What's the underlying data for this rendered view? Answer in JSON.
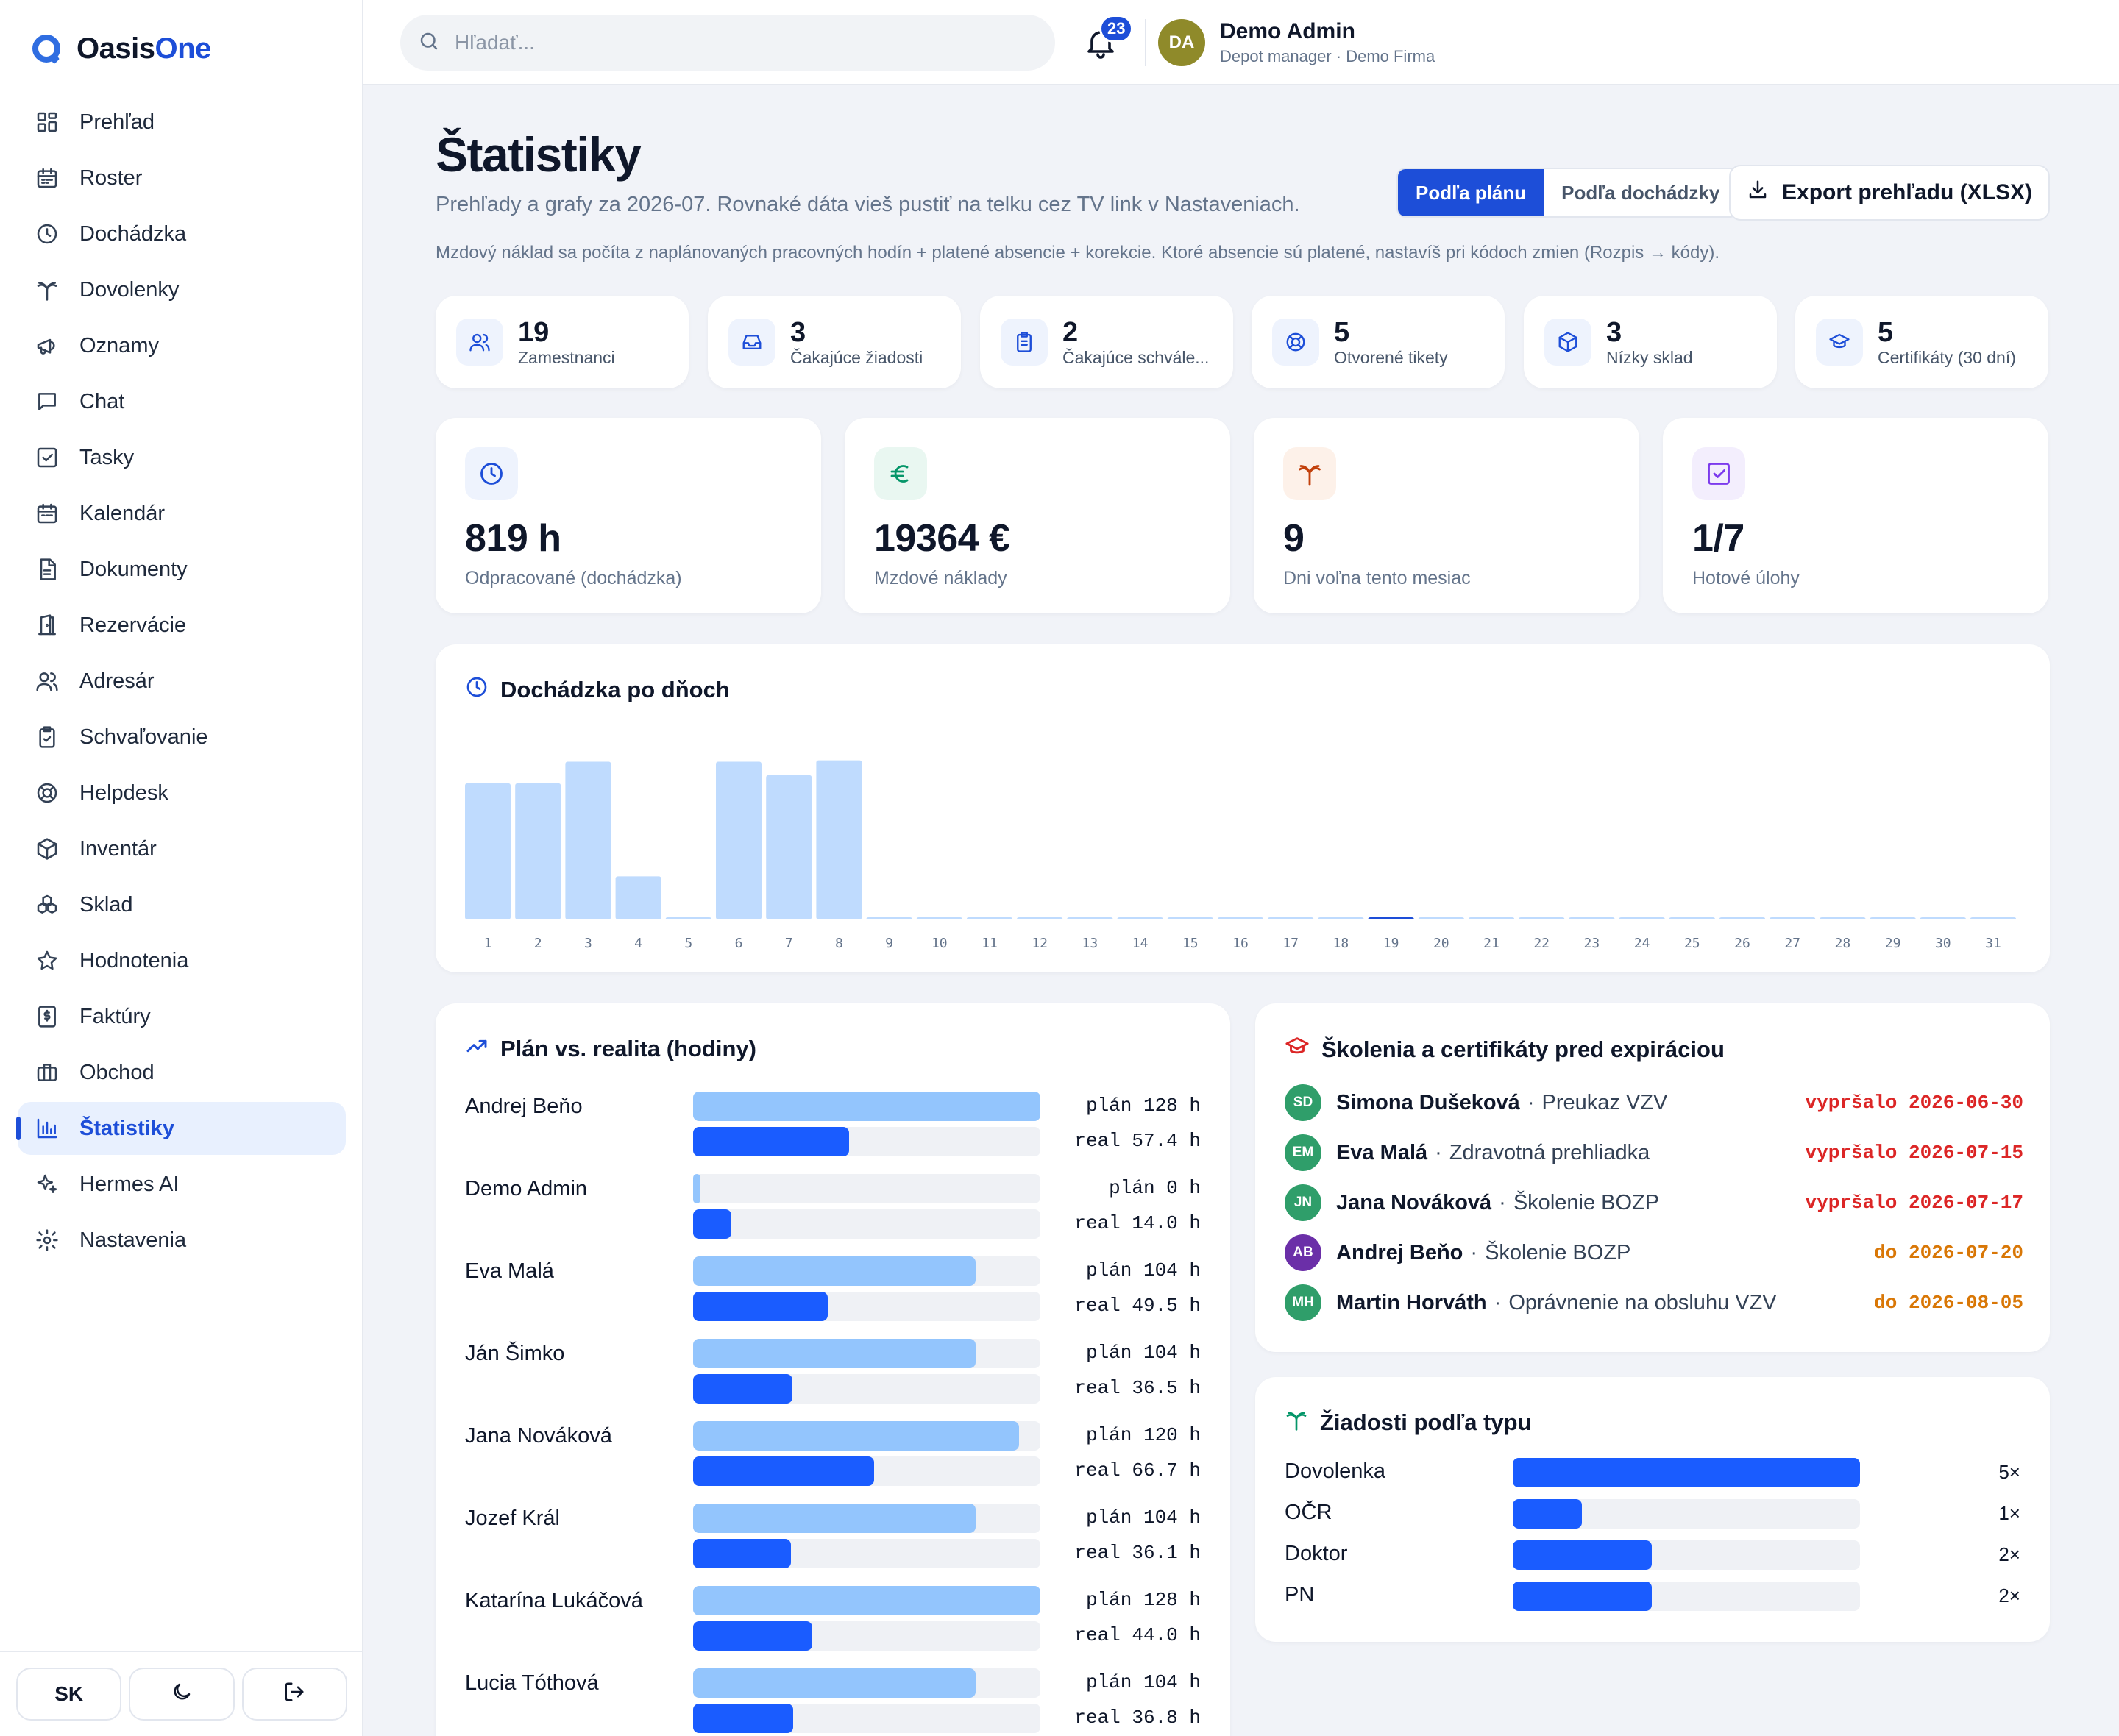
{
  "app": {
    "logo_main": "Oasis",
    "logo_accent": "One"
  },
  "sidebar": {
    "items": [
      {
        "label": "Prehľad",
        "icon": "grid-icon"
      },
      {
        "label": "Roster",
        "icon": "calendar-grid-icon"
      },
      {
        "label": "Dochádzka",
        "icon": "clock-icon"
      },
      {
        "label": "Dovolenky",
        "icon": "palm-tree-icon"
      },
      {
        "label": "Oznamy",
        "icon": "megaphone-icon"
      },
      {
        "label": "Chat",
        "icon": "chat-icon"
      },
      {
        "label": "Tasky",
        "icon": "checkbox-icon"
      },
      {
        "label": "Kalendár",
        "icon": "calendar-icon"
      },
      {
        "label": "Dokumenty",
        "icon": "document-icon"
      },
      {
        "label": "Rezervácie",
        "icon": "door-icon"
      },
      {
        "label": "Adresár",
        "icon": "users-icon"
      },
      {
        "label": "Schvaľovanie",
        "icon": "clipboard-check-icon"
      },
      {
        "label": "Helpdesk",
        "icon": "lifebuoy-icon"
      },
      {
        "label": "Inventár",
        "icon": "package-icon"
      },
      {
        "label": "Sklad",
        "icon": "boxes-icon"
      },
      {
        "label": "Hodnotenia",
        "icon": "star-icon"
      },
      {
        "label": "Faktúry",
        "icon": "invoice-icon"
      },
      {
        "label": "Obchod",
        "icon": "briefcase-icon"
      },
      {
        "label": "Štatistiky",
        "icon": "bar-chart-icon",
        "active": true
      },
      {
        "label": "Hermes AI",
        "icon": "sparkles-icon"
      },
      {
        "label": "Nastavenia",
        "icon": "gear-icon"
      }
    ],
    "lang_label": "SK"
  },
  "topbar": {
    "search_placeholder": "Hľadať...",
    "notifications": "23",
    "avatar_initials": "DA",
    "user_name": "Demo Admin",
    "user_role": "Depot manager · Demo Firma"
  },
  "page": {
    "title": "Štatistiky",
    "subtitle": "Prehľady a grafy za 2026-07. Rovnaké dáta vieš pustiť na telku cez TV link v Nastaveniach.",
    "note": "Mzdový náklad sa počíta z naplánovaných pracovných hodín + platené absencie + korekcie. Ktoré absencie sú platené, nastavíš pri kódoch zmien (Rozpis → kódy).",
    "toggle_plan": "Podľa plánu",
    "toggle_attendance": "Podľa dochádzky",
    "export_label": "Export prehľadu (XLSX)"
  },
  "kpis": [
    {
      "value": "19",
      "label": "Zamestnanci",
      "icon": "users-icon"
    },
    {
      "value": "3",
      "label": "Čakajúce žiadosti",
      "icon": "inbox-icon"
    },
    {
      "value": "2",
      "label": "Čakajúce schvále...",
      "icon": "clipboard-icon"
    },
    {
      "value": "5",
      "label": "Otvorené tikety",
      "icon": "lifebuoy-icon"
    },
    {
      "value": "3",
      "label": "Nízky sklad",
      "icon": "package-icon"
    },
    {
      "value": "5",
      "label": "Certifikáty (30 dní)",
      "icon": "graduation-cap-icon"
    }
  ],
  "big_stats": [
    {
      "value": "819 h",
      "label": "Odpracované (dochádzka)",
      "icon": "clock-icon",
      "color": "#1d4ed8",
      "bg": "#eef3fd"
    },
    {
      "value": "19364 €",
      "label": "Mzdové náklady",
      "icon": "euro-icon",
      "color": "#059669",
      "bg": "#e9f7f1"
    },
    {
      "value": "9",
      "label": "Dni voľna tento mesiac",
      "icon": "palm-tree-icon",
      "color": "#c2410c",
      "bg": "#fdf1e9"
    },
    {
      "value": "1/7",
      "label": "Hotové úlohy",
      "icon": "checkbox-icon",
      "color": "#7c3aed",
      "bg": "#f3eefd"
    }
  ],
  "attendance": {
    "title": "Dochádzka po dňoch",
    "today_index": 19
  },
  "chart_data": {
    "type": "bar",
    "title": "Dochádzka po dňoch",
    "categories": [
      "1",
      "2",
      "3",
      "4",
      "5",
      "6",
      "7",
      "8",
      "9",
      "10",
      "11",
      "12",
      "13",
      "14",
      "15",
      "16",
      "17",
      "18",
      "19",
      "20",
      "21",
      "22",
      "23",
      "24",
      "25",
      "26",
      "27",
      "28",
      "29",
      "30",
      "31"
    ],
    "values": [
      101,
      101,
      117,
      32,
      0,
      117,
      107,
      118,
      0,
      0,
      0,
      0,
      0,
      0,
      0,
      0,
      0,
      0,
      0,
      0,
      0,
      0,
      0,
      0,
      0,
      0,
      0,
      0,
      0,
      0,
      0
    ],
    "ylim": [
      0,
      120
    ],
    "grid": false
  },
  "plan_vs_real": {
    "title": "Plán vs. realita (hodiny)",
    "max_hours": 128,
    "rows": [
      {
        "name": "Andrej Beňo",
        "plan": 128,
        "real": 57.4,
        "plan_text": "plán 128 h",
        "real_text": "real 57.4 h"
      },
      {
        "name": "Demo Admin",
        "plan": 0,
        "real": 14.0,
        "plan_text": "plán 0 h",
        "real_text": "real 14.0 h"
      },
      {
        "name": "Eva Malá",
        "plan": 104,
        "real": 49.5,
        "plan_text": "plán 104 h",
        "real_text": "real 49.5 h"
      },
      {
        "name": "Ján Šimko",
        "plan": 104,
        "real": 36.5,
        "plan_text": "plán 104 h",
        "real_text": "real 36.5 h"
      },
      {
        "name": "Jana Nováková",
        "plan": 120,
        "real": 66.7,
        "plan_text": "plán 120 h",
        "real_text": "real 66.7 h"
      },
      {
        "name": "Jozef Král",
        "plan": 104,
        "real": 36.1,
        "plan_text": "plán 104 h",
        "real_text": "real 36.1 h"
      },
      {
        "name": "Katarína Lukáčová",
        "plan": 128,
        "real": 44.0,
        "plan_text": "plán 128 h",
        "real_text": "real 44.0 h"
      },
      {
        "name": "Lucia Tóthová",
        "plan": 104,
        "real": 36.8,
        "plan_text": "plán 104 h",
        "real_text": "real 36.8 h"
      }
    ]
  },
  "certs": {
    "title": "Školenia a certifikáty pred expiráciou",
    "rows": [
      {
        "initials": "SD",
        "name": "Simona Dušeková",
        "course": "Preukaz VZV",
        "date": "vypršalo 2026-06-30",
        "status": "expired"
      },
      {
        "initials": "EM",
        "name": "Eva Malá",
        "course": "Zdravotná prehliadka",
        "date": "vypršalo 2026-07-15",
        "status": "expired"
      },
      {
        "initials": "JN",
        "name": "Jana Nováková",
        "course": "Školenie BOZP",
        "date": "vypršalo 2026-07-17",
        "status": "expired"
      },
      {
        "initials": "AB",
        "name": "Andrej Beňo",
        "course": "Školenie BOZP",
        "date": "do 2026-07-20",
        "status": "soon"
      },
      {
        "initials": "MH",
        "name": "Martin Horváth",
        "course": "Oprávnenie na obsluhu VZV",
        "date": "do 2026-08-05",
        "status": "soon"
      }
    ]
  },
  "requests": {
    "title": "Žiadosti podľa typu",
    "max": 5,
    "rows": [
      {
        "type": "Dovolenka",
        "count": 5,
        "count_text": "5×"
      },
      {
        "type": "OČR",
        "count": 1,
        "count_text": "1×"
      },
      {
        "type": "Doktor",
        "count": 2,
        "count_text": "2×"
      },
      {
        "type": "PN",
        "count": 2,
        "count_text": "2×"
      }
    ]
  },
  "colors": {
    "accent": "#1d4ed8",
    "bar_light": "#bfdbfe",
    "plan_bar": "#93c5fd",
    "real_bar": "#1a5cff",
    "expired": "#dc2626",
    "soon": "#d97706",
    "avatar_green": "#2f9e6a",
    "avatar_purple": "#6b2fa8"
  }
}
